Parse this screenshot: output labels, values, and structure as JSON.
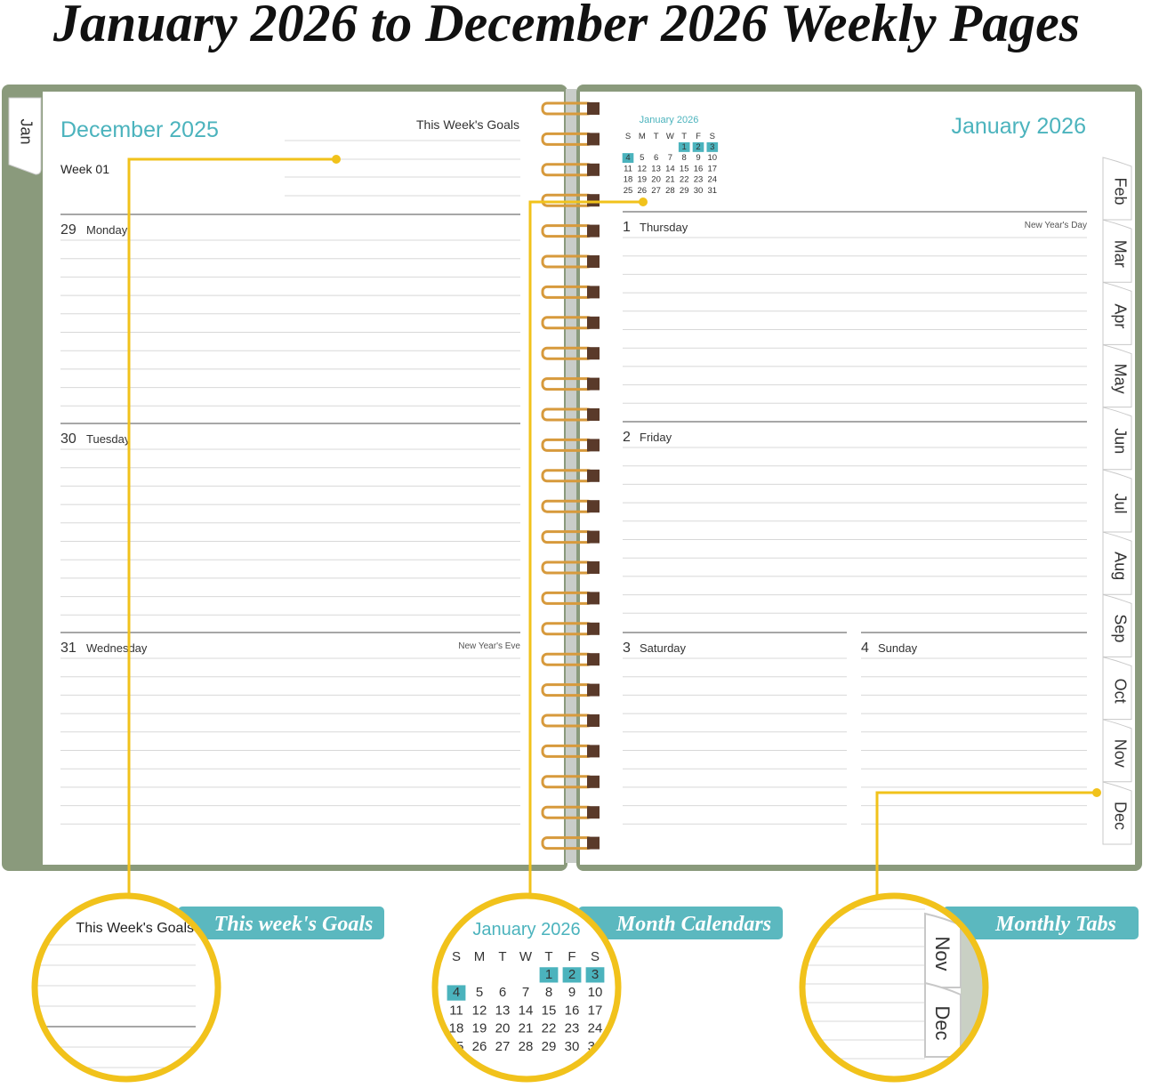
{
  "title": "January 2026 to December 2026 Weekly Pages",
  "left_page": {
    "month": "December 2025",
    "goals_label": "This Week's Goals",
    "week": "Week 01",
    "tab": "Jan",
    "days": [
      {
        "date": "29",
        "weekday": "Monday"
      },
      {
        "date": "30",
        "weekday": "Tuesday"
      },
      {
        "date": "31",
        "weekday": "Wednesday",
        "note": "New Year's Eve"
      }
    ]
  },
  "right_page": {
    "month": "January 2026",
    "mini_calendar": {
      "title": "January 2026",
      "weekdays": [
        "S",
        "M",
        "T",
        "W",
        "T",
        "F",
        "S"
      ],
      "weeks": [
        [
          null,
          null,
          null,
          null,
          1,
          2,
          3
        ],
        [
          4,
          5,
          6,
          7,
          8,
          9,
          10
        ],
        [
          11,
          12,
          13,
          14,
          15,
          16,
          17
        ],
        [
          18,
          19,
          20,
          21,
          22,
          23,
          24
        ],
        [
          25,
          26,
          27,
          28,
          29,
          30,
          31
        ]
      ],
      "highlighted_days": [
        1,
        2,
        3,
        4
      ],
      "highlight_color": "#4bb3bd"
    },
    "days": [
      {
        "date": "1",
        "weekday": "Thursday",
        "note": "New Year's Day"
      },
      {
        "date": "2",
        "weekday": "Friday"
      },
      {
        "date": "3",
        "weekday": "Saturday"
      },
      {
        "date": "4",
        "weekday": "Sunday"
      }
    ],
    "tabs": [
      "Feb",
      "Mar",
      "Apr",
      "May",
      "Jun",
      "Jul",
      "Aug",
      "Sep",
      "Oct",
      "Nov",
      "Dec"
    ]
  },
  "callouts": [
    {
      "label": "This week's Goals",
      "zoom_text": "This Week's Goals"
    },
    {
      "label": "Month Calendars"
    },
    {
      "label": "Monthly Tabs",
      "zoom_tabs": [
        "Nov",
        "Dec"
      ]
    }
  ]
}
